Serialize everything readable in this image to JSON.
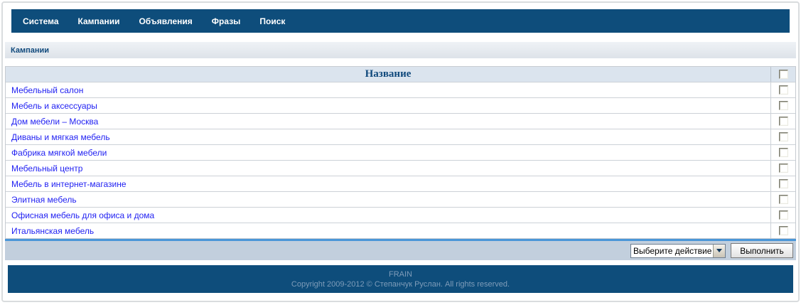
{
  "nav": {
    "items": [
      {
        "label": "Система"
      },
      {
        "label": "Кампании"
      },
      {
        "label": "Объявления"
      },
      {
        "label": "Фразы"
      },
      {
        "label": "Поиск"
      }
    ]
  },
  "breadcrumb": {
    "label": "Кампании"
  },
  "table": {
    "header": "Название",
    "rows": [
      {
        "name": "Мебельный салон"
      },
      {
        "name": "Мебель и аксессуары"
      },
      {
        "name": "Дом мебели – Москва"
      },
      {
        "name": "Диваны и мягкая мебель"
      },
      {
        "name": "Фабрика мягкой мебели"
      },
      {
        "name": "Мебельный центр"
      },
      {
        "name": "Мебель в интернет-магазине"
      },
      {
        "name": "Элитная мебель"
      },
      {
        "name": "Офисная мебель для офиса и дома"
      },
      {
        "name": "Итальянская мебель"
      }
    ]
  },
  "actions": {
    "select_value": "Выберите действие",
    "execute_label": "Выполнить"
  },
  "footer": {
    "brand": "FRAIN",
    "copyright": "Copyright 2009-2012 © Степанчук Руслан. All rights reserved."
  },
  "colors": {
    "navbar_bg": "#0e4d7b",
    "footer_bg": "#0e4d7b",
    "table_header_bg": "#dbe4ee",
    "link_blue": "#1f1ff2",
    "accent_strip": "#4a96d8",
    "action_bar_bg": "#c2cfdd",
    "footer_text": "#7e9cb9",
    "header_text": "#10497c"
  }
}
